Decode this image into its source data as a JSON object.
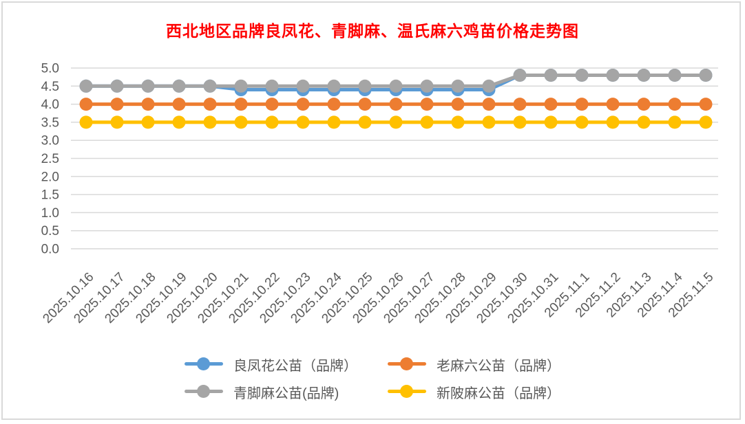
{
  "chart_data": {
    "type": "line",
    "title": "西北地区品牌良凤花、青脚麻、温氏麻六鸡苗价格走势图",
    "title_color": "#FF0000",
    "categories": [
      "2025.10.16",
      "2025.10.17",
      "2025.10.18",
      "2025.10.19",
      "2025.10.20",
      "2025.10.21",
      "2025.10.22",
      "2025.10.23",
      "2025.10.24",
      "2025.10.25",
      "2025.10.26",
      "2025.10.27",
      "2025.10.28",
      "2025.10.29",
      "2025.10.30",
      "2025.10.31",
      "2025.11.1",
      "2025.11.2",
      "2025.11.3",
      "2025.11.4",
      "2025.11.5"
    ],
    "series": [
      {
        "name": "良凤花公苗（品牌）",
        "color": "#5B9BD5",
        "values": [
          4.5,
          4.5,
          4.5,
          4.5,
          4.5,
          4.4,
          4.4,
          4.4,
          4.4,
          4.4,
          4.4,
          4.4,
          4.4,
          4.4,
          4.8,
          4.8,
          4.8,
          4.8,
          4.8,
          4.8,
          4.8
        ]
      },
      {
        "name": "老麻六公苗（品牌）",
        "color": "#ED7D31",
        "values": [
          4.0,
          4.0,
          4.0,
          4.0,
          4.0,
          4.0,
          4.0,
          4.0,
          4.0,
          4.0,
          4.0,
          4.0,
          4.0,
          4.0,
          4.0,
          4.0,
          4.0,
          4.0,
          4.0,
          4.0,
          4.0
        ]
      },
      {
        "name": "青脚麻公苗(品牌)",
        "color": "#A5A5A5",
        "values": [
          4.5,
          4.5,
          4.5,
          4.5,
          4.5,
          4.5,
          4.5,
          4.5,
          4.5,
          4.5,
          4.5,
          4.5,
          4.5,
          4.5,
          4.8,
          4.8,
          4.8,
          4.8,
          4.8,
          4.8,
          4.8
        ]
      },
      {
        "name": "新陂麻公苗（品牌）",
        "color": "#FFC000",
        "values": [
          3.5,
          3.5,
          3.5,
          3.5,
          3.5,
          3.5,
          3.5,
          3.5,
          3.5,
          3.5,
          3.5,
          3.5,
          3.5,
          3.5,
          3.5,
          3.5,
          3.5,
          3.5,
          3.5,
          3.5,
          3.5
        ]
      }
    ],
    "xlabel": "",
    "ylabel": "",
    "ylim": [
      0,
      5
    ],
    "y_step": 0.5,
    "y_tick_labels": [
      "0.0",
      "0.5",
      "1.0",
      "1.5",
      "2.0",
      "2.5",
      "3.0",
      "3.5",
      "4.0",
      "4.5",
      "5.0"
    ],
    "grid": true,
    "gridline_color": "#D9D9D9",
    "axis_label_color": "#595959",
    "frame_border_color": "#D9D9D9",
    "legend_position": "bottom",
    "legend_columns": 2
  }
}
